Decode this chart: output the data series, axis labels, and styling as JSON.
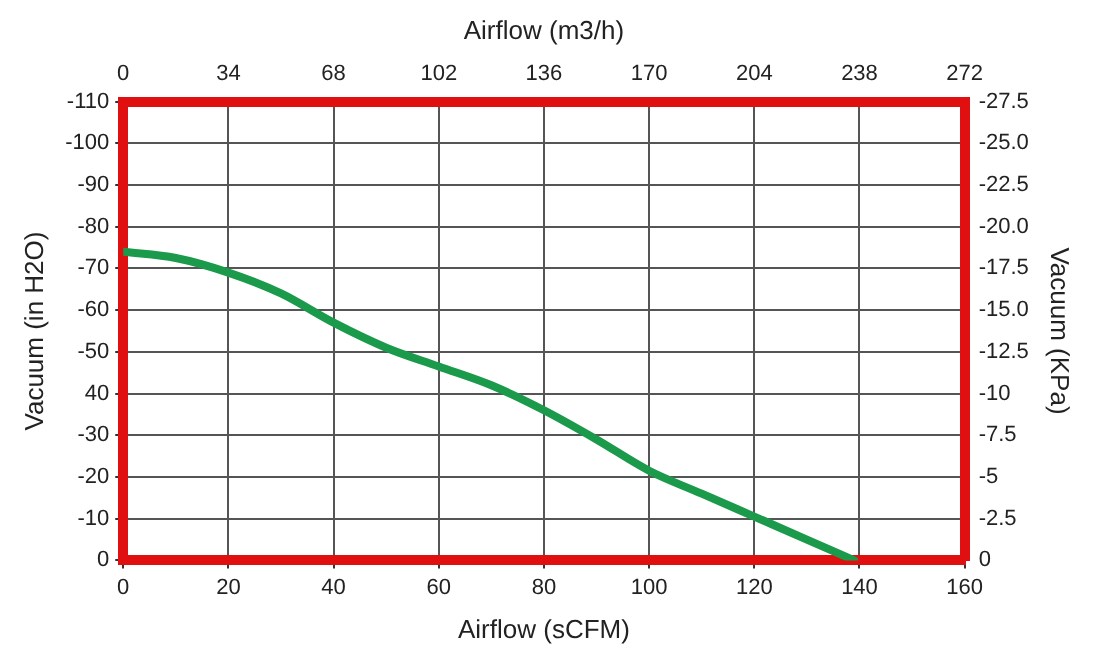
{
  "chart_data": {
    "type": "line",
    "xlabel": "Airflow (sCFM)",
    "x2label": "Airflow (m3/h)",
    "ylabel": "Vacuum (in H2O)",
    "y2label": "Vacuum (KPa)",
    "xlim": [
      0,
      160
    ],
    "xticks": [
      0,
      20,
      40,
      60,
      80,
      100,
      120,
      140,
      160
    ],
    "x2lim": [
      0,
      272
    ],
    "x2ticks": [
      0,
      34,
      68,
      102,
      136,
      170,
      204,
      238,
      272
    ],
    "ylim": [
      0,
      -110
    ],
    "yticks": [
      {
        "value": 0,
        "label": "0"
      },
      {
        "value": -10,
        "label": "-10"
      },
      {
        "value": -20,
        "label": "-20"
      },
      {
        "value": -30,
        "label": "-30"
      },
      {
        "value": -40,
        "label": "40"
      },
      {
        "value": -50,
        "label": "-50"
      },
      {
        "value": -60,
        "label": "-60"
      },
      {
        "value": -70,
        "label": "-70"
      },
      {
        "value": -80,
        "label": "-80"
      },
      {
        "value": -90,
        "label": "-90"
      },
      {
        "value": -100,
        "label": "-100"
      },
      {
        "value": -110,
        "label": "-110"
      }
    ],
    "y2lim": [
      0,
      -27.5
    ],
    "y2ticks": [
      {
        "value": 0,
        "label": "0"
      },
      {
        "value": -2.5,
        "label": "-2.5"
      },
      {
        "value": -5,
        "label": "-5"
      },
      {
        "value": -7.5,
        "label": "-7.5"
      },
      {
        "value": -10,
        "label": "-10"
      },
      {
        "value": -12.5,
        "label": "-12.5"
      },
      {
        "value": -15,
        "label": "-15.0"
      },
      {
        "value": -17.5,
        "label": "-17.5"
      },
      {
        "value": -20,
        "label": "-20.0"
      },
      {
        "value": -22.5,
        "label": "-22.5"
      },
      {
        "value": -25,
        "label": "-25.0"
      },
      {
        "value": -27.5,
        "label": "-27.5"
      }
    ],
    "x": [
      0,
      10,
      20,
      30,
      40,
      50,
      60,
      70,
      80,
      90,
      100,
      110,
      120,
      130,
      139
    ],
    "series": [
      {
        "color": "#1a9a4a",
        "values": [
          -74,
          -72.5,
          -69,
          -64,
          -57,
          -51,
          -46.5,
          -42,
          -36,
          -29,
          -21.5,
          -16,
          -10.5,
          -5,
          0
        ]
      }
    ],
    "grid": true,
    "legend": false,
    "marker": "none",
    "line_style": "solid"
  }
}
